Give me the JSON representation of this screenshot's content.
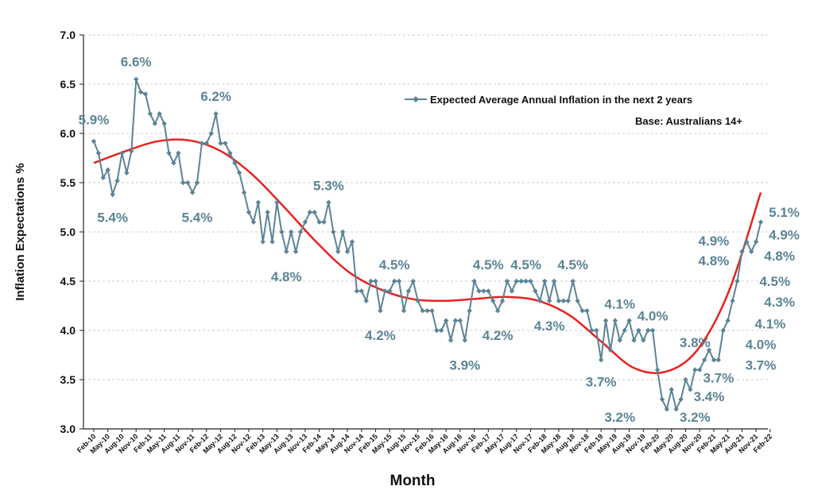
{
  "colors": {
    "series": "#5b8496",
    "trend": "#e8221f",
    "grid": "#cccccc"
  },
  "chart_data": {
    "type": "line",
    "xlabel": "Month",
    "ylabel": "Inflation Expectations %",
    "ylim": [
      3.0,
      7.0
    ],
    "yticks": [
      "3.0",
      "3.5",
      "4.0",
      "4.5",
      "5.0",
      "5.5",
      "6.0",
      "6.5",
      "7.0"
    ],
    "grid": true,
    "legend": {
      "position": "top-right",
      "series_label": "Expected Average Annual Inflation in the next 2 years",
      "base_label": "Base: Australians 14+"
    },
    "xtick_labels": [
      "Feb-10",
      "May-10",
      "Aug-10",
      "Nov-10",
      "Feb-11",
      "May-11",
      "Aug-11",
      "Nov-11",
      "Feb-12",
      "May-12",
      "Aug-12",
      "Nov-12",
      "Feb-13",
      "May-13",
      "Aug-13",
      "Nov-13",
      "Feb-14",
      "May-14",
      "Aug-14",
      "Nov-14",
      "Feb-15",
      "May-15",
      "Aug-15",
      "Nov-15",
      "Feb-16",
      "May-16",
      "Aug-16",
      "Nov-16",
      "Feb-17",
      "May-17",
      "Aug-17",
      "Nov-17",
      "Feb-18",
      "May-18",
      "Aug-18",
      "Nov-18",
      "Feb-19",
      "May-19",
      "Aug-19",
      "Nov-19",
      "Feb-20",
      "May-20",
      "Aug-20",
      "Nov-20",
      "Feb-21",
      "May-21",
      "Aug-21",
      "Nov-21",
      "Feb-22"
    ],
    "series": [
      {
        "name": "Expected Average Annual Inflation in the next 2 years",
        "values": [
          5.92,
          5.8,
          5.55,
          5.63,
          5.38,
          5.52,
          5.8,
          5.6,
          5.82,
          6.55,
          6.42,
          6.4,
          6.2,
          6.1,
          6.2,
          6.1,
          5.8,
          5.7,
          5.8,
          5.5,
          5.5,
          5.4,
          5.5,
          5.9,
          5.9,
          6.0,
          6.2,
          5.9,
          5.9,
          5.8,
          5.7,
          5.6,
          5.4,
          5.2,
          5.1,
          5.3,
          4.9,
          5.2,
          4.9,
          5.3,
          5.0,
          4.8,
          5.0,
          4.8,
          5.0,
          5.1,
          5.2,
          5.2,
          5.1,
          5.1,
          5.3,
          5.0,
          4.8,
          5.0,
          4.8,
          4.9,
          4.4,
          4.4,
          4.3,
          4.5,
          4.5,
          4.2,
          4.4,
          4.4,
          4.5,
          4.5,
          4.2,
          4.4,
          4.5,
          4.3,
          4.2,
          4.2,
          4.2,
          4.0,
          4.0,
          4.1,
          3.9,
          4.1,
          4.1,
          3.9,
          4.2,
          4.5,
          4.4,
          4.4,
          4.4,
          4.3,
          4.2,
          4.3,
          4.5,
          4.4,
          4.5,
          4.5,
          4.5,
          4.5,
          4.4,
          4.3,
          4.5,
          4.3,
          4.5,
          4.3,
          4.3,
          4.3,
          4.5,
          4.3,
          4.2,
          4.2,
          4.0,
          4.0,
          3.7,
          4.1,
          3.8,
          4.1,
          3.9,
          4.0,
          4.1,
          3.9,
          4.0,
          3.9,
          4.0,
          4.0,
          3.6,
          3.3,
          3.2,
          3.4,
          3.2,
          3.3,
          3.5,
          3.4,
          3.6,
          3.6,
          3.7,
          3.8,
          3.7,
          3.7,
          4.0,
          4.1,
          4.3,
          4.5,
          4.8,
          4.9,
          4.8,
          4.9,
          5.1
        ]
      }
    ],
    "trend": [
      5.7,
      5.82,
      5.92,
      5.93,
      5.82,
      5.58,
      5.25,
      4.9,
      4.6,
      4.42,
      4.32,
      4.3,
      4.32,
      4.34,
      4.3,
      4.15,
      3.88,
      3.62,
      3.58,
      3.8,
      4.4,
      5.4
    ],
    "annotations": [
      {
        "text": "5.9%",
        "i": 0,
        "y": 6.14
      },
      {
        "text": "5.4%",
        "i": 4,
        "y": 5.15
      },
      {
        "text": "6.6%",
        "i": 9,
        "y": 6.73
      },
      {
        "text": "5.4%",
        "i": 22,
        "y": 5.15
      },
      {
        "text": "6.2%",
        "i": 26,
        "y": 6.38
      },
      {
        "text": "4.8%",
        "i": 41,
        "y": 4.55
      },
      {
        "text": "5.3%",
        "i": 50,
        "y": 5.47
      },
      {
        "text": "4.5%",
        "i": 64,
        "y": 4.67
      },
      {
        "text": "4.2%",
        "i": 61,
        "y": 3.95
      },
      {
        "text": "3.9%",
        "i": 79,
        "y": 3.65
      },
      {
        "text": "4.5%",
        "i": 84,
        "y": 4.67
      },
      {
        "text": "4.2%",
        "i": 86,
        "y": 3.95
      },
      {
        "text": "4.5%",
        "i": 92,
        "y": 4.67
      },
      {
        "text": "4.3%",
        "i": 97,
        "y": 4.05
      },
      {
        "text": "4.5%",
        "i": 102,
        "y": 4.67
      },
      {
        "text": "3.7%",
        "i": 108,
        "y": 3.48
      },
      {
        "text": "4.1%",
        "i": 112,
        "y": 4.27
      },
      {
        "text": "3.2%",
        "i": 112,
        "y": 3.12
      },
      {
        "text": "4.0%",
        "i": 119,
        "y": 4.15
      },
      {
        "text": "3.2%",
        "i": 128,
        "y": 3.12
      },
      {
        "text": "3.8%",
        "i": 128,
        "y": 3.88
      },
      {
        "text": "3.4%",
        "i": 131,
        "y": 3.33
      },
      {
        "text": "3.7%",
        "i": 133,
        "y": 3.52
      },
      {
        "text": "4.9%",
        "i": 132,
        "y": 4.91
      },
      {
        "text": "4.8%",
        "i": 132,
        "y": 4.71
      },
      {
        "text": "5.1%",
        "i": 147,
        "y": 5.2
      },
      {
        "text": "4.9%",
        "i": 147,
        "y": 4.97
      },
      {
        "text": "4.8%",
        "i": 146,
        "y": 4.76
      },
      {
        "text": "4.5%",
        "i": 145,
        "y": 4.5
      },
      {
        "text": "4.3%",
        "i": 146,
        "y": 4.29
      },
      {
        "text": "4.1%",
        "i": 144,
        "y": 4.07
      },
      {
        "text": "4.0%",
        "i": 142,
        "y": 3.86
      },
      {
        "text": "3.7%",
        "i": 142,
        "y": 3.65
      }
    ]
  }
}
